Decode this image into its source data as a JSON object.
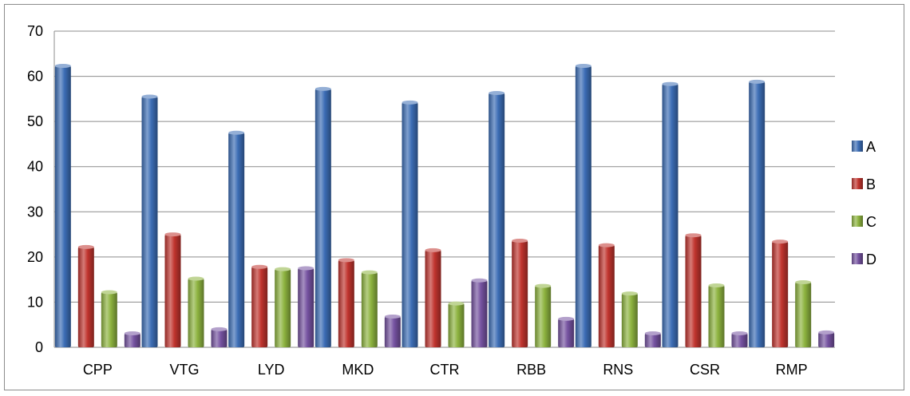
{
  "chart_data": {
    "type": "bar",
    "title": "",
    "xlabel": "",
    "ylabel": "",
    "ylim": [
      0,
      70
    ],
    "yticks": [
      0,
      10,
      20,
      30,
      40,
      50,
      60,
      70
    ],
    "grid": true,
    "legend_position": "right",
    "categories": [
      "CPP",
      "VTG",
      "LYD",
      "MKD",
      "CTR",
      "RBB",
      "RNS",
      "CSR",
      "RMP"
    ],
    "series": [
      {
        "name": "A",
        "color": "#3C6DB5",
        "values": [
          62.3,
          55.5,
          47.5,
          57.2,
          54.2,
          56.3,
          62.3,
          58.3,
          58.8
        ]
      },
      {
        "name": "B",
        "color": "#C0342E",
        "values": [
          22.2,
          25.0,
          17.8,
          19.3,
          21.5,
          23.6,
          22.6,
          24.8,
          23.4
        ]
      },
      {
        "name": "C",
        "color": "#8DB33F",
        "values": [
          12.2,
          15.2,
          17.3,
          16.6,
          9.7,
          13.6,
          11.9,
          13.7,
          14.4
        ]
      },
      {
        "name": "D",
        "color": "#7552A0",
        "values": [
          3.1,
          4.0,
          17.5,
          6.8,
          14.8,
          6.3,
          3.1,
          3.1,
          3.3
        ]
      }
    ]
  }
}
